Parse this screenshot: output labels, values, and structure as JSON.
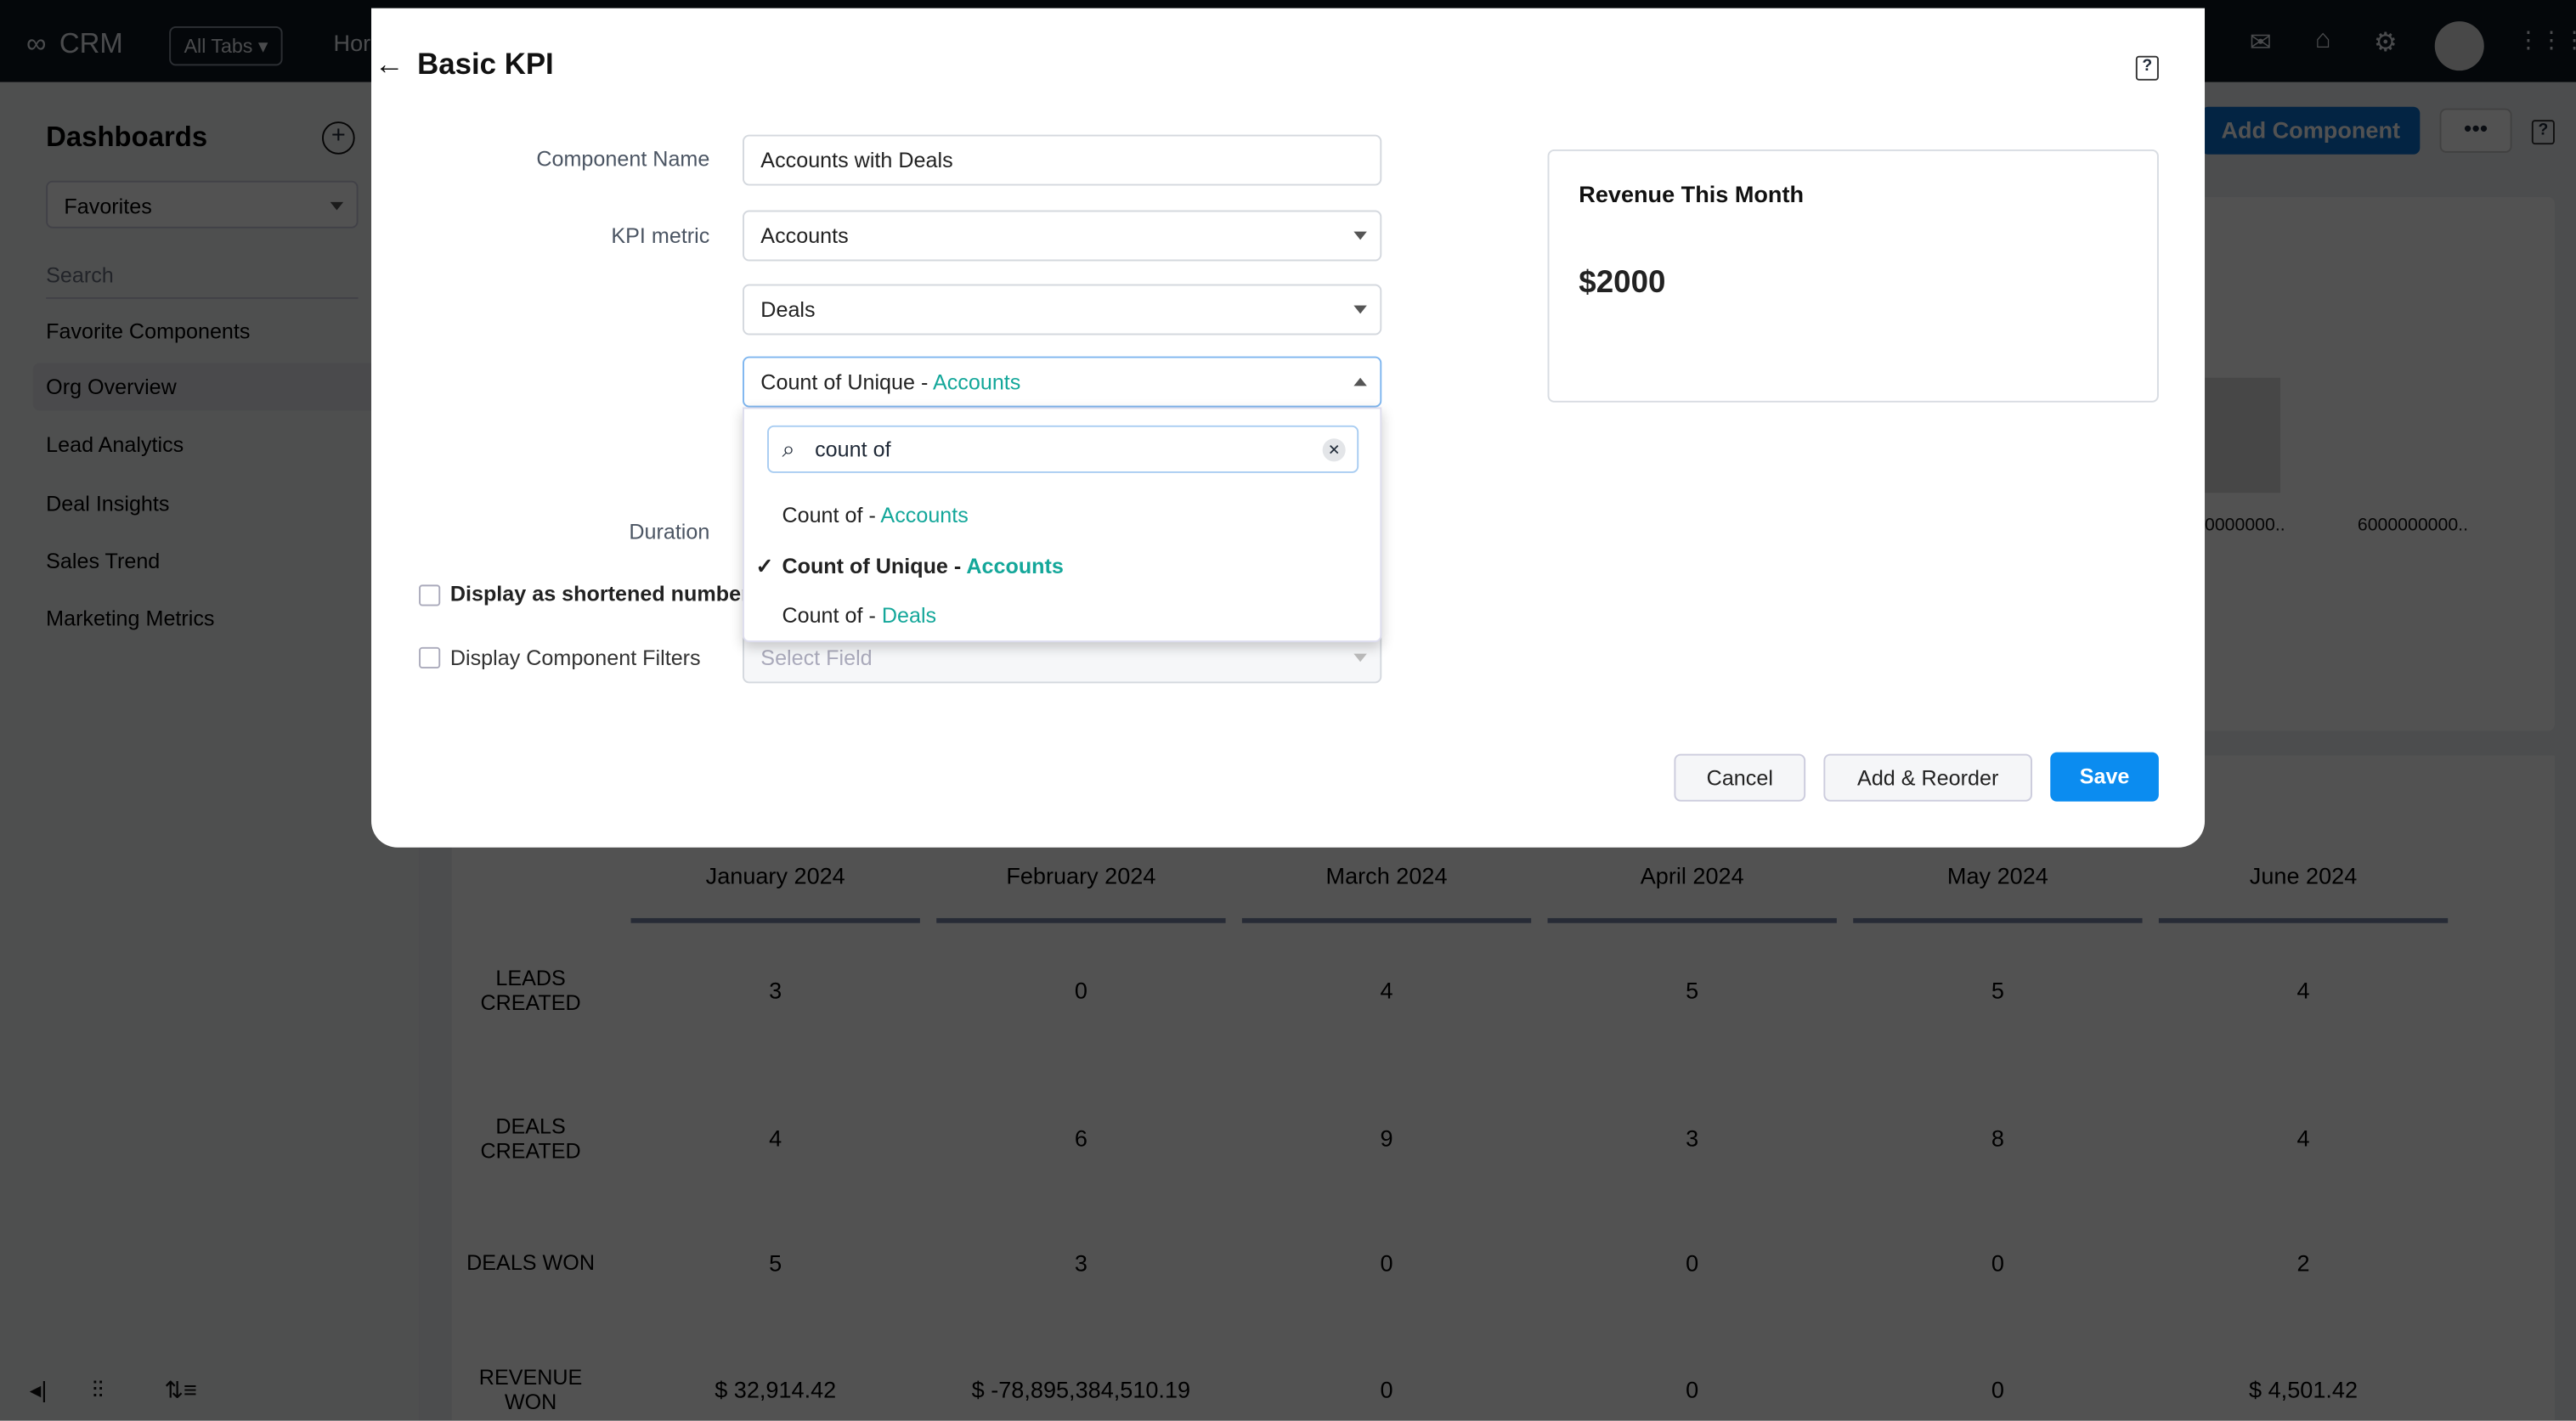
{
  "topbar": {
    "app_name": "CRM",
    "all_tabs": "All Tabs",
    "home_partial": "Hor",
    "icons": [
      "mail-icon",
      "store-icon",
      "gear-icon",
      "avatar",
      "apps-grid-icon"
    ]
  },
  "sidebar": {
    "title": "Dashboards",
    "filter": "Favorites",
    "search_placeholder": "Search",
    "items": [
      {
        "label": "Favorite Components"
      },
      {
        "label": "Org Overview",
        "active": true
      },
      {
        "label": "Lead Analytics"
      },
      {
        "label": "Deal Insights"
      },
      {
        "label": "Sales Trend"
      },
      {
        "label": "Marketing Metrics"
      }
    ]
  },
  "content": {
    "add_component": "Add Component",
    "more": "•••",
    "chart_labels": [
      "0000000..",
      "6000000000.."
    ],
    "table": {
      "columns": [
        "January 2024",
        "February 2024",
        "March 2024",
        "April 2024",
        "May 2024",
        "June 2024"
      ],
      "rows": [
        {
          "label": "LEADS CREATED",
          "values": [
            "3",
            "0",
            "4",
            "5",
            "5",
            "4"
          ]
        },
        {
          "label": "DEALS CREATED",
          "values": [
            "4",
            "6",
            "9",
            "3",
            "8",
            "4"
          ]
        },
        {
          "label": "DEALS WON",
          "values": [
            "5",
            "3",
            "0",
            "0",
            "0",
            "2"
          ]
        },
        {
          "label": "REVENUE WON",
          "values": [
            "$ 32,914.42",
            "$ -78,895,384,510.19",
            "0",
            "0",
            "0",
            "$ 4,501.42"
          ]
        }
      ]
    }
  },
  "modal": {
    "title": "Basic KPI",
    "component_name_label": "Component Name",
    "component_name_value": "Accounts with Deals",
    "kpi_metric_label": "KPI metric",
    "kpi_module": "Accounts",
    "kpi_related": "Deals",
    "aggregate_prefix": "Count of Unique - ",
    "aggregate_module": "Accounts",
    "dropdown": {
      "search_value": "count of",
      "options": [
        {
          "prefix": "Count of - ",
          "module": "Accounts",
          "selected": false
        },
        {
          "prefix": "Count of Unique - ",
          "module": "Accounts",
          "selected": true
        },
        {
          "prefix": "Count of - ",
          "module": "Deals",
          "selected": false
        }
      ]
    },
    "duration_label": "Duration",
    "shortened_label": "Display as shortened number",
    "filters_label": "Display Component Filters",
    "filters_placeholder": "Select Field",
    "preview": {
      "title": "Revenue This Month",
      "value": "$2000"
    },
    "cancel": "Cancel",
    "add_reorder": "Add & Reorder",
    "save": "Save"
  },
  "colors": {
    "accent": "#0b8cf0",
    "module_teal": "#14a79a",
    "topbar": "#0b1520"
  }
}
